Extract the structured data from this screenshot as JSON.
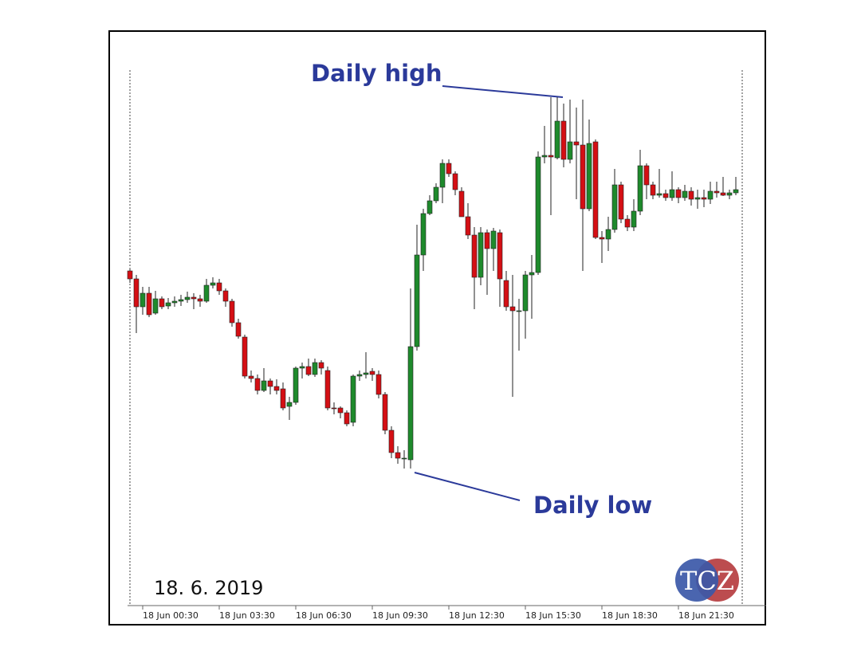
{
  "chart_data": {
    "type": "candlestick",
    "categories": [
      null,
      null,
      "18 Jun 00:30",
      null,
      null,
      null,
      null,
      null,
      null,
      null,
      null,
      null,
      null,
      null,
      "18 Jun 03:30",
      null,
      null,
      null,
      null,
      null,
      null,
      null,
      null,
      null,
      null,
      null,
      "18 Jun 06:30",
      null,
      null,
      null,
      null,
      null,
      null,
      null,
      null,
      null,
      null,
      null,
      "18 Jun 09:30",
      null,
      null,
      null,
      null,
      null,
      null,
      null,
      null,
      null,
      null,
      null,
      "18 Jun 12:30",
      null,
      null,
      null,
      null,
      null,
      null,
      null,
      null,
      null,
      null,
      null,
      "18 Jun 15:30",
      null,
      null,
      null,
      null,
      null,
      null,
      null,
      null,
      null,
      null,
      null,
      "18 Jun 18:30",
      null,
      null,
      null,
      null,
      null,
      null,
      null,
      null,
      null,
      null,
      null,
      "18 Jun 21:30",
      null,
      null,
      null,
      null,
      null,
      null,
      null,
      null,
      null
    ],
    "open": [
      460,
      450,
      415,
      432,
      407,
      425,
      416,
      420,
      422,
      424,
      427,
      425,
      422,
      442,
      445,
      435,
      422,
      395,
      377,
      328,
      325,
      310,
      322,
      315,
      312,
      290,
      295,
      338,
      340,
      330,
      345,
      335,
      288,
      288,
      282,
      270,
      328,
      330,
      334,
      330,
      305,
      260,
      232,
      225,
      223,
      365,
      480,
      532,
      548,
      565,
      595,
      582,
      560,
      528,
      505,
      452,
      508,
      488,
      508,
      448,
      415,
      410,
      410,
      455,
      458,
      603,
      605,
      602,
      648,
      600,
      622,
      618,
      538,
      622,
      502,
      500,
      512,
      568,
      525,
      515,
      535,
      592,
      568,
      555,
      557,
      552,
      562,
      552,
      560,
      550,
      552,
      550,
      560,
      558,
      555,
      558
    ],
    "high": [
      462,
      455,
      440,
      440,
      435,
      428,
      426,
      428,
      430,
      434,
      432,
      430,
      450,
      452,
      450,
      438,
      425,
      400,
      380,
      335,
      330,
      338,
      325,
      324,
      320,
      302,
      340,
      345,
      350,
      350,
      348,
      340,
      295,
      290,
      285,
      330,
      335,
      358,
      338,
      335,
      308,
      265,
      240,
      235,
      438,
      518,
      538,
      555,
      570,
      600,
      600,
      585,
      565,
      545,
      515,
      515,
      512,
      514,
      512,
      460,
      455,
      425,
      460,
      480,
      610,
      642,
      678,
      678,
      670,
      675,
      665,
      675,
      650,
      625,
      510,
      528,
      588,
      572,
      530,
      550,
      612,
      595,
      572,
      588,
      562,
      585,
      565,
      568,
      565,
      562,
      562,
      572,
      572,
      578,
      562,
      578
    ],
    "low": [
      445,
      382,
      405,
      402,
      405,
      412,
      412,
      415,
      416,
      420,
      412,
      415,
      420,
      438,
      430,
      415,
      390,
      375,
      325,
      320,
      305,
      308,
      305,
      305,
      285,
      273,
      292,
      325,
      328,
      327,
      330,
      285,
      280,
      275,
      265,
      265,
      322,
      325,
      322,
      300,
      255,
      225,
      218,
      212,
      212,
      360,
      460,
      530,
      545,
      545,
      578,
      555,
      528,
      500,
      412,
      442,
      430,
      460,
      415,
      410,
      302,
      360,
      375,
      400,
      455,
      595,
      530,
      600,
      590,
      595,
      550,
      460,
      535,
      500,
      470,
      485,
      508,
      520,
      510,
      510,
      530,
      550,
      550,
      552,
      548,
      548,
      545,
      548,
      542,
      538,
      540,
      544,
      552,
      554,
      550,
      555
    ],
    "close": [
      450,
      415,
      432,
      405,
      425,
      415,
      420,
      422,
      424,
      427,
      425,
      422,
      442,
      445,
      435,
      422,
      395,
      378,
      328,
      325,
      310,
      322,
      315,
      310,
      288,
      295,
      338,
      340,
      330,
      345,
      338,
      288,
      287,
      282,
      268,
      328,
      330,
      332,
      330,
      305,
      260,
      232,
      225,
      225,
      365,
      480,
      532,
      548,
      565,
      595,
      582,
      562,
      528,
      505,
      452,
      508,
      488,
      510,
      450,
      415,
      410,
      410,
      455,
      458,
      603,
      605,
      603,
      648,
      600,
      622,
      618,
      538,
      620,
      502,
      500,
      512,
      568,
      525,
      515,
      535,
      592,
      568,
      555,
      557,
      552,
      562,
      552,
      560,
      550,
      552,
      550,
      560,
      558,
      555,
      558,
      562
    ],
    "up_color": "#1e8a2c",
    "down_color": "#d40f14",
    "ylim": [
      40,
      760
    ],
    "annotations": [
      "Daily high",
      "Daily low"
    ],
    "date_label": "18. 6. 2019",
    "logo": "TCZ"
  }
}
